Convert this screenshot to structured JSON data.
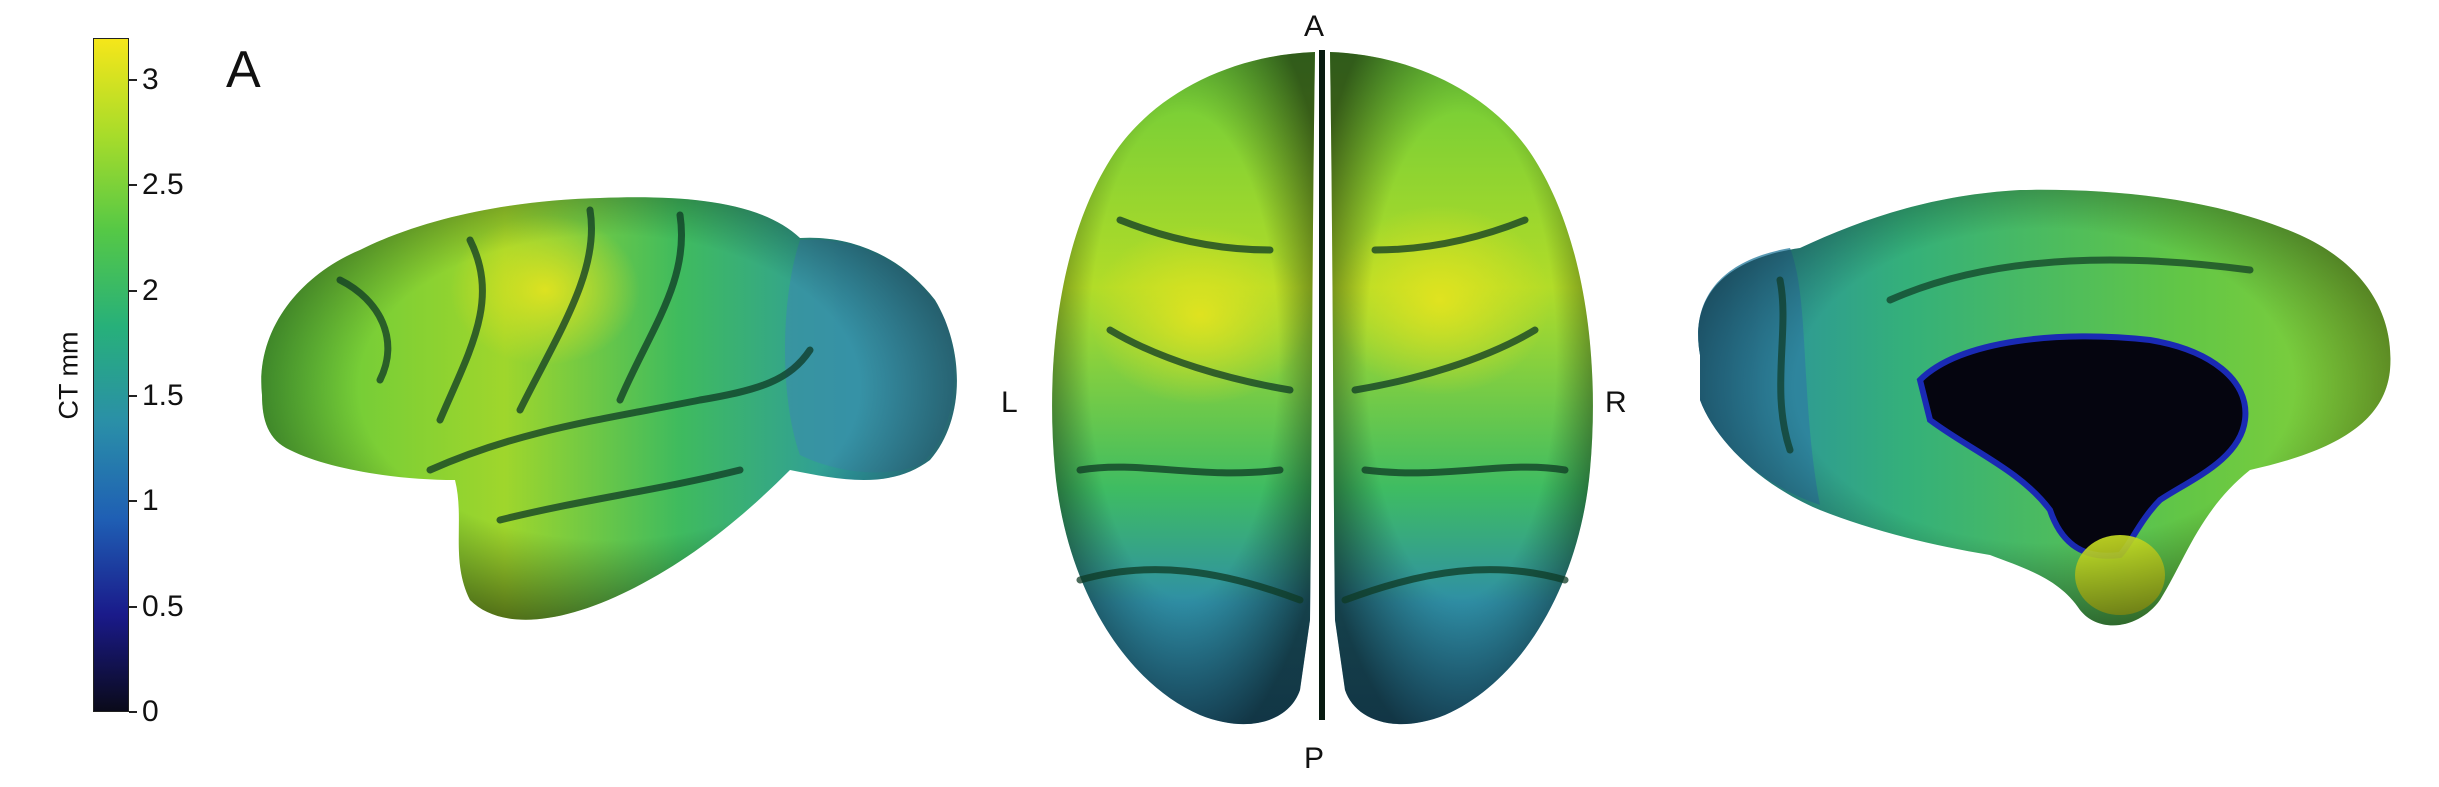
{
  "panel_label": "A",
  "colorbar": {
    "label": "CT mm",
    "min": 0,
    "max": 3.2,
    "ticks": [
      "3",
      "2.5",
      "2",
      "1.5",
      "1",
      "0.5",
      "0"
    ],
    "tick_values": [
      3,
      2.5,
      2,
      1.5,
      1,
      0.5,
      0
    ],
    "colormap": [
      "#0a0a1a",
      "#1a1a8a",
      "#1f5fb4",
      "#2a8fa8",
      "#27b07a",
      "#55c846",
      "#a8dc2a",
      "#f5e61a"
    ]
  },
  "orientation": {
    "anterior": "A",
    "posterior": "P",
    "left": "L",
    "right": "R"
  },
  "views": [
    "lateral-left",
    "dorsal",
    "medial-right"
  ]
}
